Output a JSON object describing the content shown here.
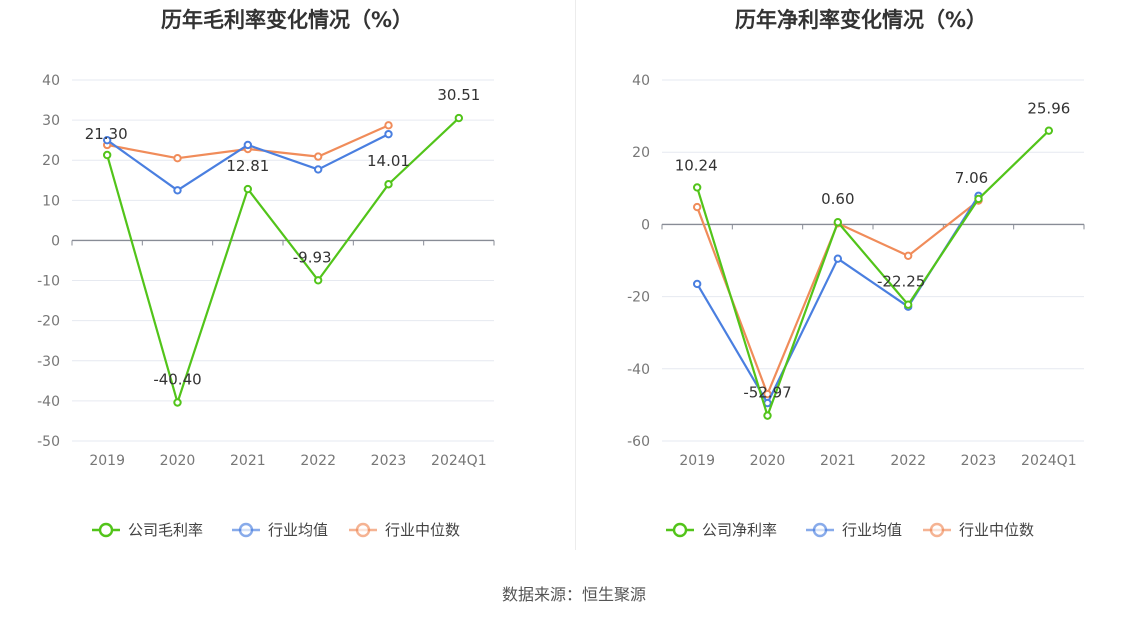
{
  "chart_data": [
    {
      "type": "line",
      "title": "历年毛利率变化情况（%）",
      "categories": [
        "2019",
        "2020",
        "2021",
        "2022",
        "2023",
        "2024Q1"
      ],
      "ylim": [
        -50,
        40
      ],
      "yticks": [
        40,
        30,
        20,
        10,
        0,
        -10,
        -20,
        -30,
        -40,
        -50
      ],
      "grid": true,
      "legend_position": "bottom",
      "series": [
        {
          "name": "公司毛利率",
          "color": "#52c41a",
          "values": [
            21.3,
            -40.4,
            12.81,
            -9.93,
            14.01,
            30.51
          ],
          "labels": [
            "21.30",
            "-40.40",
            "12.81",
            "-9.93",
            "14.01",
            "30.51"
          ]
        },
        {
          "name": "行业均值",
          "color": "#4a7fe0",
          "values": [
            25.0,
            12.5,
            23.8,
            17.7,
            26.5,
            null
          ]
        },
        {
          "name": "行业中位数",
          "color": "#f08c5a",
          "values": [
            23.8,
            20.5,
            22.8,
            20.9,
            28.7,
            null
          ]
        }
      ]
    },
    {
      "type": "line",
      "title": "历年净利率变化情况（%）",
      "categories": [
        "2019",
        "2020",
        "2021",
        "2022",
        "2023",
        "2024Q1"
      ],
      "ylim": [
        -60,
        40
      ],
      "yticks": [
        40,
        20,
        0,
        -20,
        -40,
        -60
      ],
      "grid": true,
      "legend_position": "bottom",
      "series": [
        {
          "name": "公司净利率",
          "color": "#52c41a",
          "values": [
            10.24,
            -52.97,
            0.6,
            -22.25,
            7.06,
            25.96
          ],
          "labels": [
            "10.24",
            "-52.97",
            "0.60",
            "-22.25",
            "7.06",
            "25.96"
          ]
        },
        {
          "name": "行业均值",
          "color": "#4a7fe0",
          "values": [
            -16.5,
            -49.5,
            -9.5,
            -22.8,
            7.9,
            null
          ]
        },
        {
          "name": "行业中位数",
          "color": "#f08c5a",
          "values": [
            4.8,
            -47.0,
            0.3,
            -8.7,
            6.6,
            null
          ]
        }
      ]
    }
  ],
  "source": "数据来源：恒生聚源"
}
